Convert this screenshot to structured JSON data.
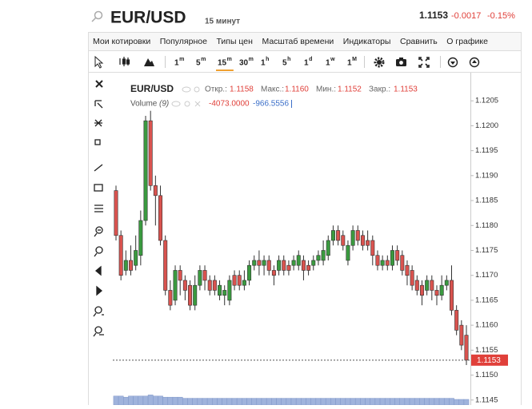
{
  "header": {
    "symbol": "EUR/USD",
    "interval": "15 минут",
    "price": "1.1153",
    "change": "-0.0017",
    "change_pct": "-0.15%"
  },
  "menu": [
    "Мои котировки",
    "Популярное",
    "Типы цен",
    "Масштаб времени",
    "Индикаторы",
    "Сравнить",
    "О графике"
  ],
  "timeframes": [
    [
      "1",
      "m"
    ],
    [
      "5",
      "m"
    ],
    [
      "15",
      "m"
    ],
    [
      "30",
      "m"
    ],
    [
      "1",
      "h"
    ],
    [
      "5",
      "h"
    ],
    [
      "1",
      "d"
    ],
    [
      "1",
      "w"
    ],
    [
      "1",
      "M"
    ]
  ],
  "active_timeframe": 2,
  "chart_data": {
    "type": "candlestick",
    "legend": {
      "symbol": "EUR/USD",
      "open_label": "Откр.:",
      "open": "1.1158",
      "high_label": "Макс.:",
      "high": "1.1160",
      "low_label": "Мин.:",
      "low": "1.1152",
      "close_label": "Закр.:",
      "close": "1.1153",
      "volume_label": "Volume",
      "volume_period": "(9)",
      "volume_value": "-4073.0000",
      "volume_ma": "-966.5556"
    },
    "current_price": {
      "value": 1.1153,
      "label": "1.1153"
    },
    "up_color": "#3a9a3f",
    "down_color": "#d9534f",
    "volume_color": "#9fb3dc",
    "open": [
      1.1187,
      1.1178,
      1.1171,
      1.1173,
      1.1172,
      1.1174,
      1.1181,
      1.1201,
      1.1188,
      1.1186,
      1.1177,
      1.1167,
      1.1165,
      1.1171,
      1.1169,
      1.1168,
      1.1164,
      1.1168,
      1.1171,
      1.1169,
      1.1169,
      1.1166,
      1.1166,
      1.1165,
      1.117,
      1.117,
      1.1168,
      1.1169,
      1.1172,
      1.1173,
      1.1172,
      1.1173,
      1.1171,
      1.1171,
      1.1173,
      1.1172,
      1.1172,
      1.1172,
      1.1173,
      1.1172,
      1.1172,
      1.1173,
      1.1173,
      1.1174,
      1.1177,
      1.1179,
      1.1178,
      1.1173,
      1.1176,
      1.1179,
      1.1178,
      1.1177,
      1.1177,
      1.1174,
      1.1172,
      1.1173,
      1.1172,
      1.1175,
      1.1174,
      1.1172,
      1.1171,
      1.1169,
      1.1168,
      1.1167,
      1.1169,
      1.1167,
      1.1166,
      1.1168,
      1.1169,
      1.1163,
      1.116,
      1.1158
    ],
    "high": [
      1.1188,
      1.1179,
      1.1175,
      1.1176,
      1.1178,
      1.1183,
      1.1202,
      1.1203,
      1.119,
      1.1188,
      1.1178,
      1.1169,
      1.1172,
      1.1172,
      1.117,
      1.1169,
      1.117,
      1.1172,
      1.1172,
      1.117,
      1.117,
      1.1169,
      1.1168,
      1.117,
      1.1171,
      1.1171,
      1.1171,
      1.1173,
      1.1174,
      1.1175,
      1.1174,
      1.1174,
      1.1172,
      1.1174,
      1.1174,
      1.1173,
      1.1174,
      1.1175,
      1.1174,
      1.1173,
      1.1174,
      1.1175,
      1.1177,
      1.1178,
      1.118,
      1.118,
      1.1179,
      1.1177,
      1.118,
      1.118,
      1.1179,
      1.1179,
      1.1178,
      1.1175,
      1.1174,
      1.1174,
      1.1176,
      1.1176,
      1.1175,
      1.1173,
      1.1172,
      1.117,
      1.1169,
      1.117,
      1.117,
      1.1168,
      1.117,
      1.117,
      1.1172,
      1.1164,
      1.1161,
      1.116
    ],
    "low": [
      1.1177,
      1.1169,
      1.117,
      1.117,
      1.1171,
      1.1172,
      1.118,
      1.1187,
      1.118,
      1.1176,
      1.1166,
      1.1163,
      1.1164,
      1.1166,
      1.1165,
      1.1163,
      1.1163,
      1.1167,
      1.1167,
      1.1166,
      1.1166,
      1.1165,
      1.1164,
      1.1164,
      1.1167,
      1.1167,
      1.1167,
      1.1168,
      1.1171,
      1.117,
      1.117,
      1.117,
      1.1168,
      1.117,
      1.117,
      1.117,
      1.1171,
      1.1171,
      1.1169,
      1.117,
      1.1171,
      1.1172,
      1.1172,
      1.1173,
      1.1176,
      1.1176,
      1.1175,
      1.1172,
      1.1175,
      1.1176,
      1.1175,
      1.1175,
      1.1172,
      1.1171,
      1.1171,
      1.1171,
      1.1171,
      1.1172,
      1.117,
      1.1168,
      1.1167,
      1.1166,
      1.1164,
      1.1166,
      1.1165,
      1.1164,
      1.1165,
      1.1167,
      1.1162,
      1.1158,
      1.1155,
      1.1152
    ],
    "close": [
      1.1178,
      1.117,
      1.1173,
      1.1171,
      1.1175,
      1.1181,
      1.1201,
      1.1188,
      1.1186,
      1.1177,
      1.1167,
      1.1164,
      1.1171,
      1.1169,
      1.1167,
      1.1164,
      1.1168,
      1.1171,
      1.1169,
      1.1167,
      1.1167,
      1.1168,
      1.1167,
      1.1169,
      1.1168,
      1.1168,
      1.1169,
      1.1172,
      1.1173,
      1.1172,
      1.1173,
      1.1171,
      1.117,
      1.1173,
      1.1171,
      1.1171,
      1.1173,
      1.1174,
      1.1171,
      1.1171,
      1.1173,
      1.1174,
      1.1175,
      1.1177,
      1.1179,
      1.1177,
      1.1176,
      1.1176,
      1.1179,
      1.1177,
      1.1176,
      1.1176,
      1.1174,
      1.1172,
      1.1173,
      1.1172,
      1.1175,
      1.1173,
      1.1171,
      1.117,
      1.1168,
      1.1167,
      1.1166,
      1.1169,
      1.1167,
      1.1166,
      1.1168,
      1.1169,
      1.1163,
      1.1159,
      1.1156,
      1.1153
    ],
    "volume": [
      8,
      8,
      7,
      8,
      8,
      8,
      8,
      9,
      8,
      8,
      7,
      7,
      7,
      7,
      6,
      6,
      6,
      6,
      6,
      6,
      6,
      6,
      6,
      6,
      6,
      6,
      6,
      6,
      6,
      6,
      6,
      6,
      6,
      6,
      6,
      6,
      6,
      6,
      6,
      6,
      6,
      6,
      6,
      6,
      6,
      6,
      6,
      6,
      6,
      6,
      6,
      6,
      6,
      6,
      6,
      6,
      6,
      6,
      6,
      6,
      6,
      6,
      6,
      6,
      6,
      6,
      6,
      6,
      6,
      5,
      5,
      5
    ],
    "vlim": [
      0,
      10
    ],
    "ylim": [
      1.1144,
      1.121
    ],
    "yticks": [
      1.1205,
      {
        "value": 1.12,
        "label": "1.1200"
      },
      1.1195,
      {
        "value": 1.119,
        "label": "1.1190"
      },
      1.1185,
      {
        "value": 1.118,
        "label": "1.1180"
      },
      1.1175,
      {
        "value": 1.117,
        "label": "1.1170"
      },
      1.1165,
      {
        "value": 1.116,
        "label": "1.1160"
      },
      1.1155,
      {
        "value": 1.115,
        "label": "1.1150"
      },
      1.1145
    ]
  }
}
